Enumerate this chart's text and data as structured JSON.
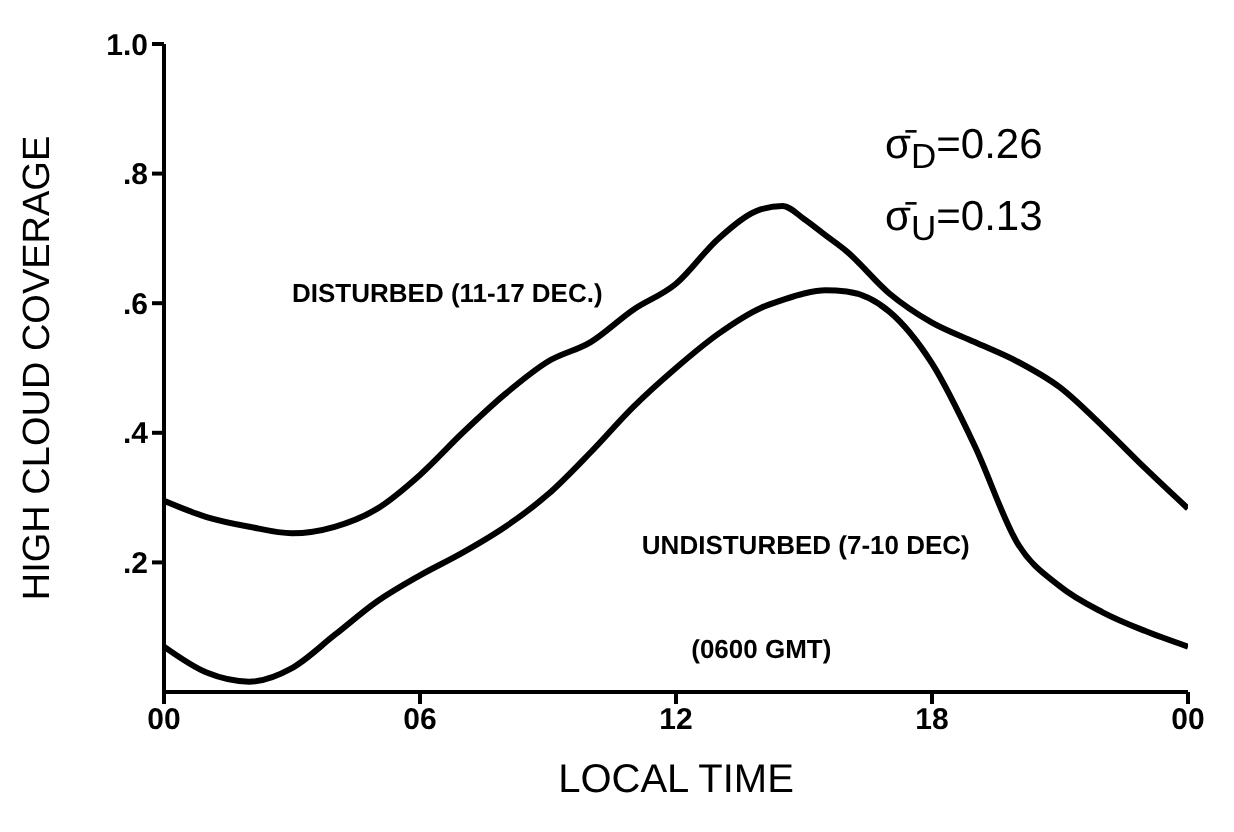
{
  "chart_data": {
    "type": "line",
    "xlabel": "LOCAL TIME",
    "ylabel": "HIGH CLOUD COVERAGE",
    "x": [
      0,
      1,
      2,
      3,
      4,
      5,
      6,
      7,
      8,
      9,
      10,
      11,
      12,
      13,
      14,
      14.5,
      15,
      15.5,
      16,
      17,
      18,
      19,
      20,
      21,
      22,
      23,
      24
    ],
    "series": [
      {
        "name": "DISTURBED (11-17 DEC.)",
        "color": "#000000",
        "values": [
          0.295,
          0.27,
          0.255,
          0.245,
          0.255,
          0.283,
          0.335,
          0.4,
          0.46,
          0.51,
          0.54,
          0.59,
          0.63,
          0.7,
          0.745,
          0.75,
          0.73,
          0.705,
          0.68,
          0.615,
          0.57,
          0.54,
          0.51,
          0.47,
          0.41,
          0.345,
          0.283
        ]
      },
      {
        "name": "UNDISTURBED (7-10 DEC)",
        "color": "#000000",
        "values": [
          0.07,
          0.03,
          0.016,
          0.037,
          0.088,
          0.14,
          0.18,
          0.215,
          0.255,
          0.305,
          0.37,
          0.44,
          0.5,
          0.553,
          0.593,
          0.605,
          0.615,
          0.62,
          0.618,
          0.587,
          0.507,
          0.38,
          0.23,
          0.163,
          0.123,
          0.094,
          0.07
        ]
      }
    ],
    "xlim": [
      0,
      24
    ],
    "xticks": [
      {
        "value": 0,
        "label": "00"
      },
      {
        "value": 6,
        "label": "06"
      },
      {
        "value": 12,
        "label": "12"
      },
      {
        "value": 18,
        "label": "18"
      },
      {
        "value": 24,
        "label": "00"
      }
    ],
    "ylim": [
      0,
      1
    ],
    "yticks": [
      {
        "value": 0.2,
        "label": ".2"
      },
      {
        "value": 0.4,
        "label": ".4"
      },
      {
        "value": 0.6,
        "label": ".6"
      },
      {
        "value": 0.8,
        "label": ".8"
      },
      {
        "value": 1,
        "label": "1.0"
      }
    ],
    "marker": "none",
    "line_style": "solid",
    "annotations": [
      "σ̄$_{D}$=0.26",
      "σ̄$_{U}$=0.13",
      "(0600 GMT)"
    ]
  }
}
